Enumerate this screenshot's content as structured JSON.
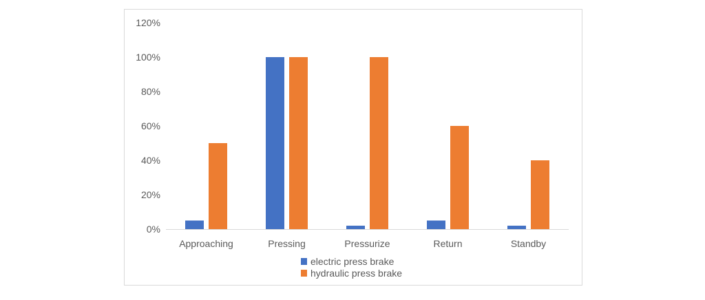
{
  "chart_data": {
    "type": "bar",
    "categories": [
      "Approaching",
      "Pressing",
      "Pressurize",
      "Return",
      "Standby"
    ],
    "series": [
      {
        "name": "electric press brake",
        "color": "#4472c4",
        "values": [
          5,
          100,
          2,
          5,
          2
        ]
      },
      {
        "name": "hydraulic press brake",
        "color": "#ed7d31",
        "values": [
          50,
          100,
          100,
          60,
          40
        ]
      }
    ],
    "ylim": [
      0,
      120
    ],
    "yticks": [
      0,
      20,
      40,
      60,
      80,
      100,
      120
    ],
    "ytick_labels": [
      "0%",
      "20%",
      "40%",
      "60%",
      "80%",
      "100%",
      "120%"
    ],
    "grid": false,
    "legend_position": "bottom"
  }
}
